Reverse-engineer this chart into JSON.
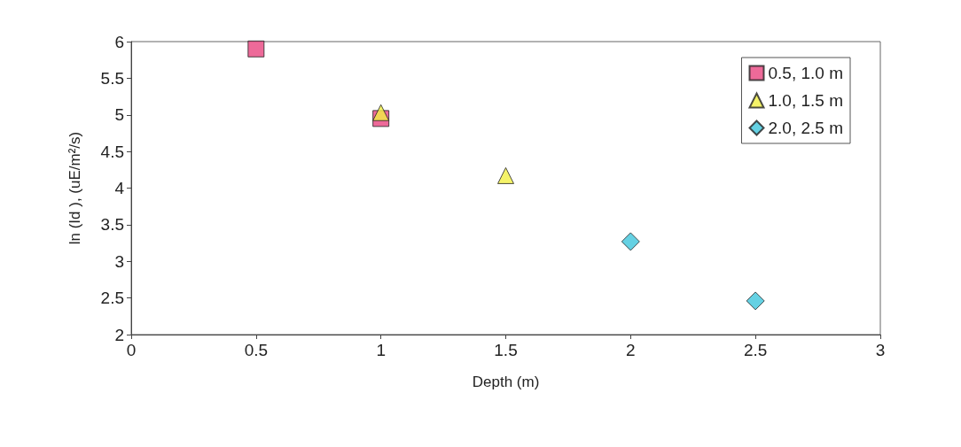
{
  "chart_data": {
    "type": "scatter",
    "xlabel": "Depth (m)",
    "ylabel": "ln (Id ), (uE/m²/s)",
    "xlim": [
      0,
      3
    ],
    "xticks": [
      0,
      0.5,
      1,
      1.5,
      2,
      2.5,
      3
    ],
    "ylim": [
      2,
      6
    ],
    "yticks": [
      2,
      2.5,
      3,
      3.5,
      4,
      4.5,
      5,
      5.5,
      6
    ],
    "grid": false,
    "legend": "top right",
    "series": [
      {
        "name": "0.5, 1.0 m",
        "color": "#e8457f",
        "marker": "square",
        "x": [
          0.5,
          1.0
        ],
        "values": [
          5.9,
          4.95
        ]
      },
      {
        "name": "1.0, 1.5 m",
        "color": "#f2f044",
        "marker": "triangle",
        "x": [
          1.0,
          1.5
        ],
        "values": [
          5.03,
          4.17
        ]
      },
      {
        "name": "2.0, 2.5 m",
        "color": "#3fc6dc",
        "marker": "diamond",
        "x": [
          2.0,
          2.5
        ],
        "values": [
          3.27,
          2.46
        ]
      }
    ]
  }
}
